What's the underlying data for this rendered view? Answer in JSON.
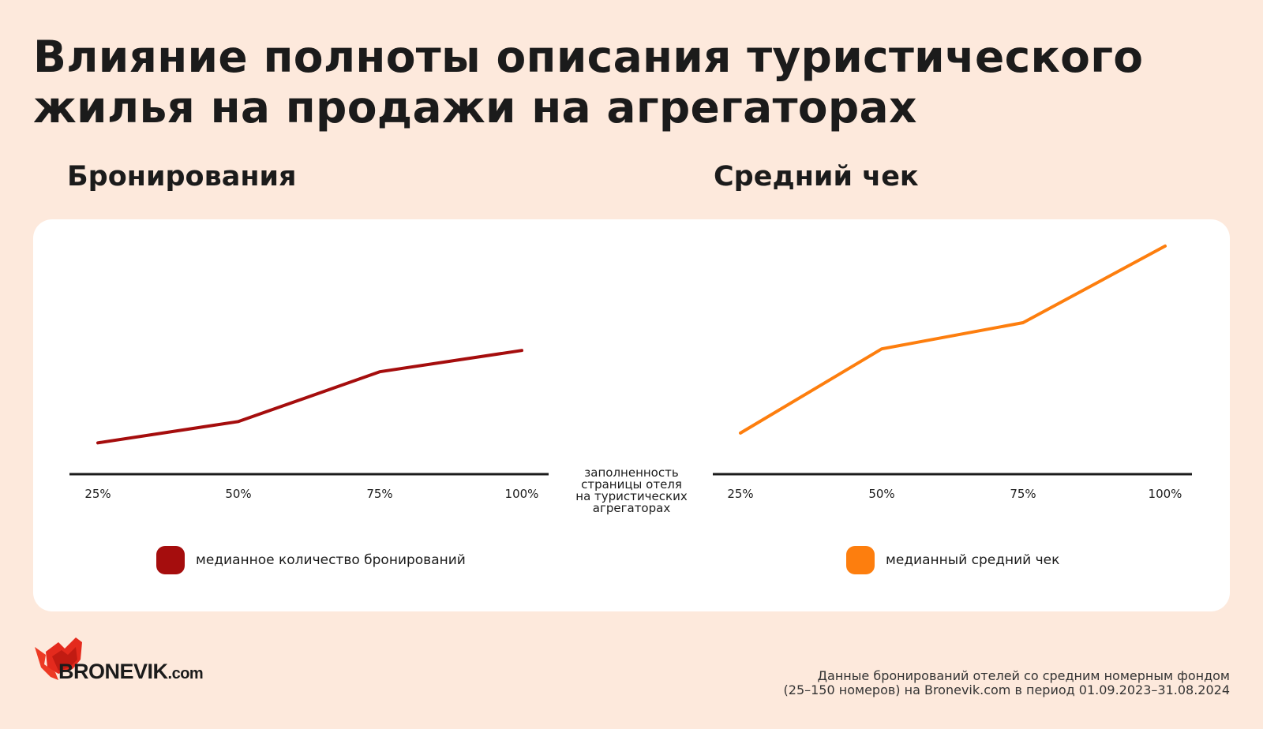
{
  "title_line1": "Влияние полноты описания туристического",
  "title_line2": "жилья на продажи на агрегаторах",
  "x_axis_caption": [
    "заполненность",
    "страницы отеля",
    "на туристических",
    "агрегаторах"
  ],
  "logo": {
    "main": "BRONEVIK",
    "suffix": ".com"
  },
  "footnote": [
    "Данные бронирований отелей со средним номерным фондом",
    "(25–150 номеров) на Bronevik.com в период 01.09.2023–31.08.2024"
  ],
  "chart_data": [
    {
      "type": "line",
      "title": "Бронирования",
      "categories": [
        "25%",
        "50%",
        "75%",
        "100%"
      ],
      "series": [
        {
          "name": "медианное количество бронирований",
          "values": [
            15,
            30,
            65,
            80
          ],
          "color": "#a50d0d"
        }
      ],
      "ylim": [
        -7,
        160
      ],
      "legend": "bottom",
      "grid": false
    },
    {
      "type": "line",
      "title": "Средний чек",
      "categories": [
        "25%",
        "50%",
        "75%",
        "100%"
      ],
      "series": [
        {
          "name": "медианный средний чек",
          "values": [
            15,
            60,
            74,
            115
          ],
          "color": "#fd7e0e"
        }
      ],
      "ylim": [
        -7,
        120
      ],
      "legend": "bottom",
      "grid": false
    }
  ]
}
